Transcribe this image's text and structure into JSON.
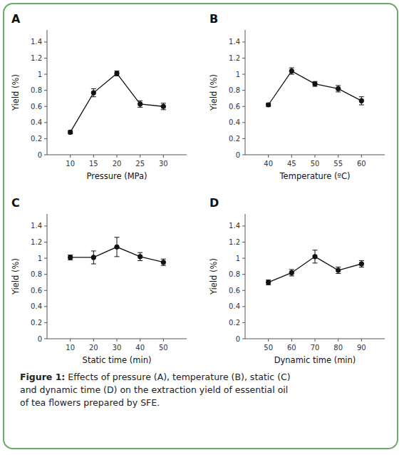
{
  "chart_data": [
    {
      "type": "line",
      "title": "A",
      "xlabel": "Pressure (MPa)",
      "ylabel": "Yield (%)",
      "x": [
        10,
        15,
        20,
        25,
        30
      ],
      "values": [
        0.28,
        0.77,
        1.01,
        0.63,
        0.6
      ],
      "errors": [
        0.02,
        0.05,
        0.03,
        0.04,
        0.04
      ],
      "xlim": [
        5,
        35
      ],
      "xticks": [
        10,
        15,
        20,
        25,
        30
      ],
      "ylim": [
        0,
        1.55
      ],
      "yticks": [
        0,
        0.2,
        0.4,
        0.6,
        0.8,
        1,
        1.2,
        1.4
      ],
      "color": "#111111",
      "marker": "circle",
      "line_style": "solid",
      "grid": false
    },
    {
      "type": "line",
      "title": "B",
      "xlabel": "Temperature (ºC)",
      "ylabel": "Yield (%)",
      "x": [
        40,
        45,
        50,
        55,
        60
      ],
      "values": [
        0.62,
        1.04,
        0.88,
        0.82,
        0.67
      ],
      "errors": [
        0.02,
        0.04,
        0.03,
        0.04,
        0.05
      ],
      "xlim": [
        35,
        65
      ],
      "xticks": [
        40,
        45,
        50,
        55,
        60
      ],
      "ylim": [
        0,
        1.55
      ],
      "yticks": [
        0,
        0.2,
        0.4,
        0.6,
        0.8,
        1,
        1.2,
        1.4
      ],
      "color": "#111111",
      "marker": "circle",
      "line_style": "solid",
      "grid": false
    },
    {
      "type": "line",
      "title": "C",
      "xlabel": "Static time (min)",
      "ylabel": "Yield (%)",
      "x": [
        10,
        20,
        30,
        40,
        50
      ],
      "values": [
        1.01,
        1.01,
        1.14,
        1.02,
        0.95
      ],
      "errors": [
        0.03,
        0.08,
        0.12,
        0.05,
        0.04
      ],
      "xlim": [
        0,
        60
      ],
      "xticks": [
        10,
        20,
        30,
        40,
        50
      ],
      "ylim": [
        0,
        1.55
      ],
      "yticks": [
        0,
        0.2,
        0.4,
        0.6,
        0.8,
        1,
        1.2,
        1.4
      ],
      "color": "#111111",
      "marker": "circle",
      "line_style": "solid",
      "grid": false
    },
    {
      "type": "line",
      "title": "D",
      "xlabel": "Dynamic time (min)",
      "ylabel": "Yield (%)",
      "x": [
        50,
        60,
        70,
        80,
        90
      ],
      "values": [
        0.7,
        0.82,
        1.02,
        0.85,
        0.93
      ],
      "errors": [
        0.03,
        0.04,
        0.08,
        0.04,
        0.04
      ],
      "xlim": [
        40,
        100
      ],
      "xticks": [
        50,
        60,
        70,
        80,
        90
      ],
      "ylim": [
        0,
        1.55
      ],
      "yticks": [
        0,
        0.2,
        0.4,
        0.6,
        0.8,
        1,
        1.2,
        1.4
      ],
      "color": "#111111",
      "marker": "circle",
      "line_style": "solid",
      "grid": false
    }
  ],
  "caption": {
    "label": "Figure 1:",
    "text": " Effects of pressure (A), temperature (B), static (C)\nand dynamic time (D) on the extraction yield of essential oil\nof tea flowers prepared by SFE."
  }
}
